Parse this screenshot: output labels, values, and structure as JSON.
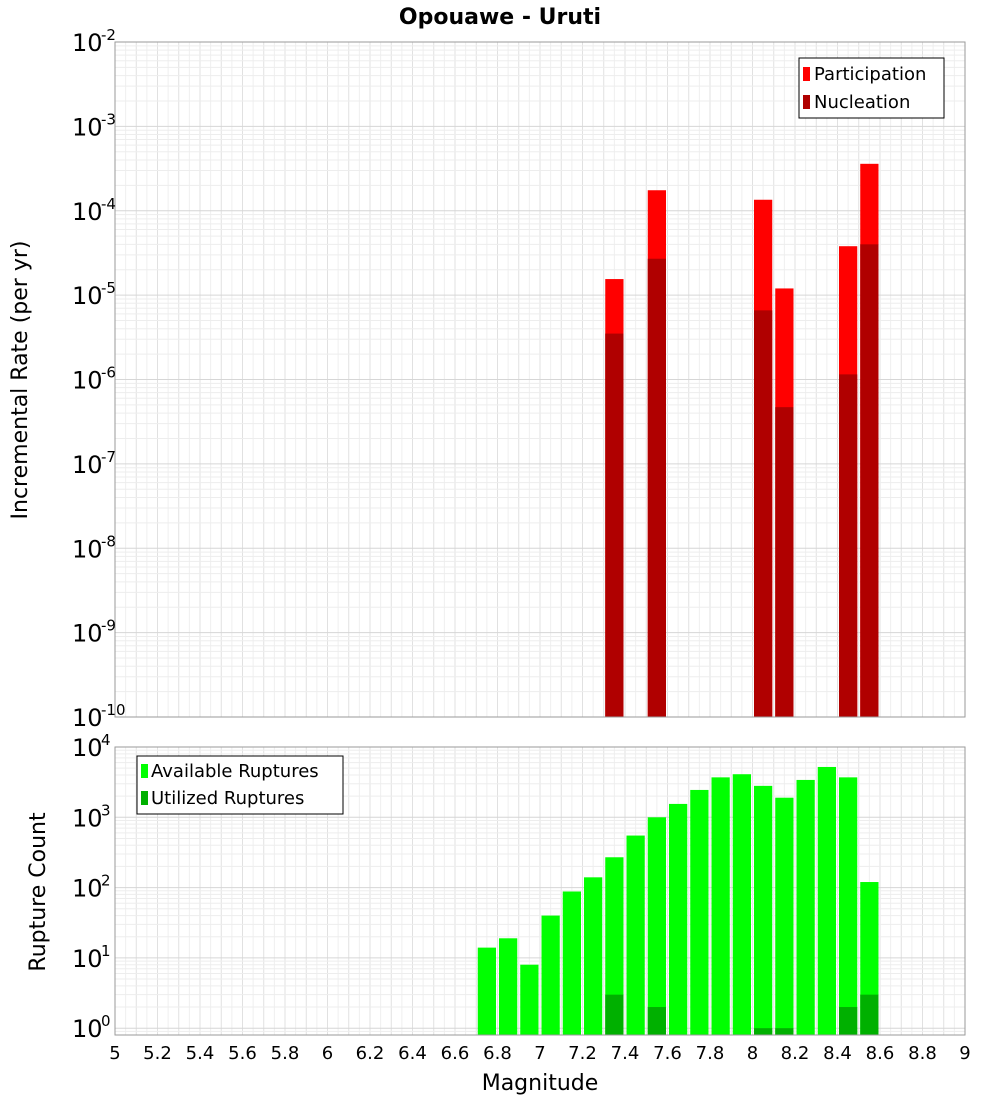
{
  "chart_data": [
    {
      "type": "bar",
      "title": "Opouawe - Uruti",
      "xlabel": "",
      "ylabel": "Incremental Rate (per yr)",
      "yscale": "log",
      "ylim": [
        1e-10,
        0.01
      ],
      "xlim": [
        5,
        9
      ],
      "grid": true,
      "legend_position": "top-right",
      "y_tick_exponents": [
        "-10",
        "-9",
        "-8",
        "-7",
        "-6",
        "-5",
        "-4",
        "-3",
        "-2"
      ],
      "series": [
        {
          "name": "Participation",
          "color": "#ff0000",
          "points": [
            {
              "x": 7.35,
              "y": 1.55e-05
            },
            {
              "x": 7.55,
              "y": 0.000175
            },
            {
              "x": 8.05,
              "y": 0.000135
            },
            {
              "x": 8.15,
              "y": 1.2e-05
            },
            {
              "x": 8.45,
              "y": 3.8e-05
            },
            {
              "x": 8.55,
              "y": 0.00036
            }
          ]
        },
        {
          "name": "Nucleation",
          "color": "#b00000",
          "points": [
            {
              "x": 7.35,
              "y": 3.5e-06
            },
            {
              "x": 7.55,
              "y": 2.7e-05
            },
            {
              "x": 8.05,
              "y": 6.6e-06
            },
            {
              "x": 8.15,
              "y": 4.7e-07
            },
            {
              "x": 8.45,
              "y": 1.15e-06
            },
            {
              "x": 8.55,
              "y": 4e-05
            }
          ]
        }
      ]
    },
    {
      "type": "bar",
      "title": "",
      "xlabel": "Magnitude",
      "ylabel": "Rupture Count",
      "yscale": "log",
      "ylim": [
        0.8,
        10000.0
      ],
      "xlim": [
        5,
        9
      ],
      "grid": true,
      "legend_position": "top-left",
      "x_ticks": [
        "5",
        "5.2",
        "5.4",
        "5.6",
        "5.8",
        "6",
        "6.2",
        "6.4",
        "6.6",
        "6.8",
        "7",
        "7.2",
        "7.4",
        "7.6",
        "7.8",
        "8",
        "8.2",
        "8.4",
        "8.6",
        "8.8",
        "9"
      ],
      "y_tick_exponents": [
        "0",
        "1",
        "2",
        "3",
        "4"
      ],
      "series": [
        {
          "name": "Available Ruptures",
          "color": "#00ff00",
          "points": [
            {
              "x": 6.75,
              "y": 14
            },
            {
              "x": 6.85,
              "y": 19
            },
            {
              "x": 6.95,
              "y": 8
            },
            {
              "x": 7.05,
              "y": 40
            },
            {
              "x": 7.15,
              "y": 88
            },
            {
              "x": 7.25,
              "y": 140
            },
            {
              "x": 7.35,
              "y": 270
            },
            {
              "x": 7.45,
              "y": 550
            },
            {
              "x": 7.55,
              "y": 1000
            },
            {
              "x": 7.65,
              "y": 1550
            },
            {
              "x": 7.75,
              "y": 2450
            },
            {
              "x": 7.85,
              "y": 3700
            },
            {
              "x": 7.95,
              "y": 4100
            },
            {
              "x": 8.05,
              "y": 2800
            },
            {
              "x": 8.15,
              "y": 1900
            },
            {
              "x": 8.25,
              "y": 3400
            },
            {
              "x": 8.35,
              "y": 5200
            },
            {
              "x": 8.45,
              "y": 3700
            },
            {
              "x": 8.55,
              "y": 120
            }
          ]
        },
        {
          "name": "Utilized Ruptures",
          "color": "#00b000",
          "points": [
            {
              "x": 7.35,
              "y": 3
            },
            {
              "x": 7.55,
              "y": 2
            },
            {
              "x": 8.05,
              "y": 1
            },
            {
              "x": 8.15,
              "y": 1
            },
            {
              "x": 8.45,
              "y": 2
            },
            {
              "x": 8.55,
              "y": 3
            }
          ]
        }
      ]
    }
  ]
}
